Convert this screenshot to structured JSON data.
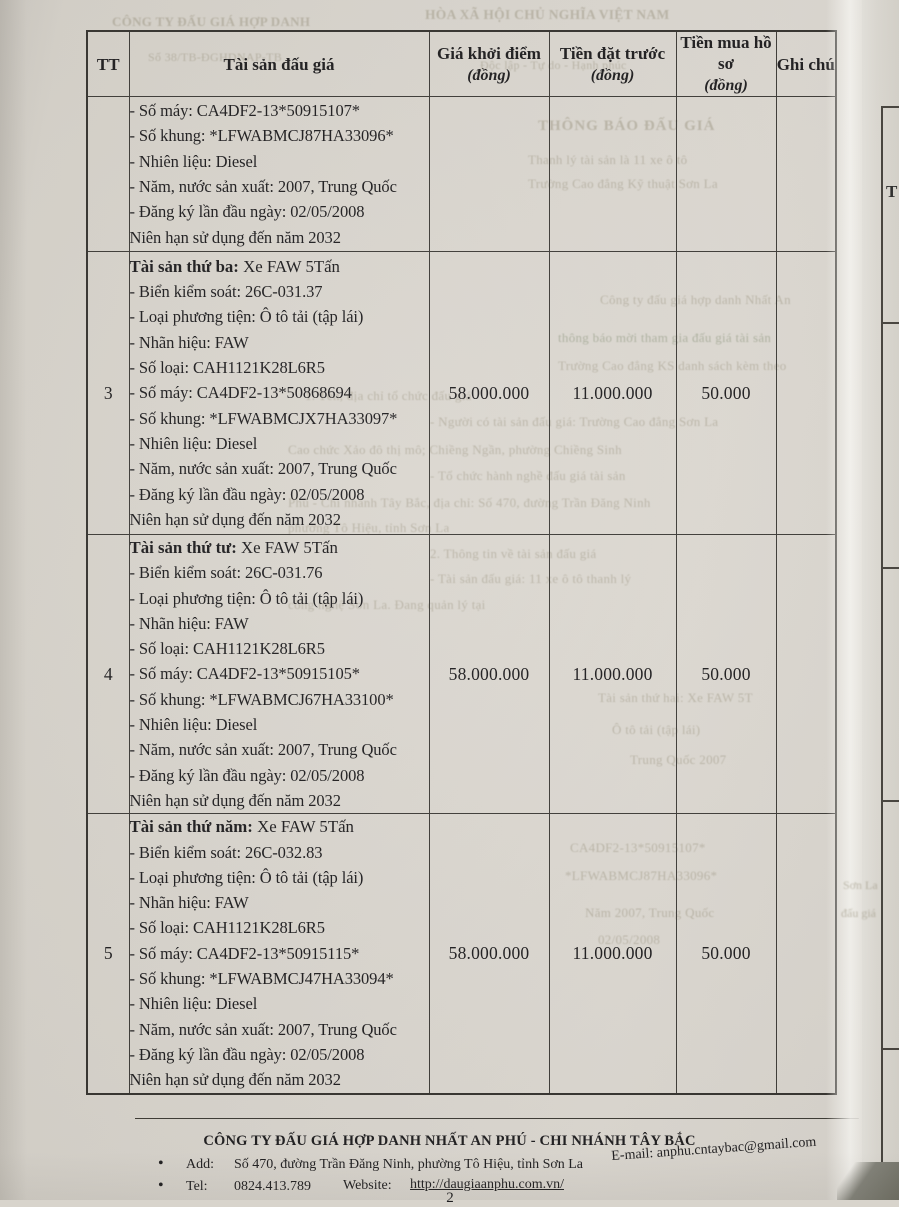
{
  "page": {
    "number": "2"
  },
  "table": {
    "columns": [
      {
        "label": "TT",
        "sub": ""
      },
      {
        "label": "Tài sản đấu giá",
        "sub": ""
      },
      {
        "label": "Giá khởi điểm",
        "sub": "(đồng)"
      },
      {
        "label": "Tiền đặt trước",
        "sub": "(đồng)"
      },
      {
        "label": "Tiền mua hồ sơ",
        "sub": "(đồng)"
      },
      {
        "label": "Ghi chú",
        "sub": ""
      }
    ],
    "rows": [
      {
        "tt": "",
        "title_bold": "",
        "title_rest": "",
        "details": [
          "- Số máy: CA4DF2-13*50915107*",
          "- Số khung: *LFWABMCJ87HA33096*",
          "- Nhiên liệu: Diesel",
          "- Năm, nước sản xuất: 2007, Trung Quốc",
          "- Đăng ký lần đầu ngày: 02/05/2008",
          "Niên hạn sử dụng đến năm 2032"
        ],
        "gia_khoi_diem": "",
        "tien_dat_truoc": "",
        "tien_mua_ho_so": "",
        "ghi_chu": ""
      },
      {
        "tt": "3",
        "title_bold": "Tài sản thứ ba:",
        "title_rest": " Xe FAW 5Tấn",
        "details": [
          "- Biển kiểm soát: 26C-031.37",
          "- Loại phương tiện: Ô tô tải (tập lái)",
          "- Nhãn hiệu: FAW",
          "- Số loại: CAH1121K28L6R5",
          "- Số máy: CA4DF2-13*50868694",
          "- Số khung: *LFWABMCJX7HA33097*",
          "- Nhiên liệu: Diesel",
          "- Năm, nước sản xuất: 2007, Trung Quốc",
          "- Đăng ký lần đầu ngày: 02/05/2008",
          "Niên hạn sử dụng đến năm 2032"
        ],
        "gia_khoi_diem": "58.000.000",
        "tien_dat_truoc": "11.000.000",
        "tien_mua_ho_so": "50.000",
        "ghi_chu": ""
      },
      {
        "tt": "4",
        "title_bold": "Tài sản thứ tư:",
        "title_rest": " Xe FAW 5Tấn",
        "details": [
          "- Biển kiểm soát: 26C-031.76",
          "- Loại phương tiện: Ô tô tải (tập lái)",
          "- Nhãn hiệu: FAW",
          "- Số loại: CAH1121K28L6R5",
          "- Số máy: CA4DF2-13*50915105*",
          "- Số khung: *LFWABMCJ67HA33100*",
          "- Nhiên liệu: Diesel",
          "- Năm, nước sản xuất: 2007, Trung Quốc",
          "- Đăng ký lần đầu ngày: 02/05/2008",
          "Niên hạn sử dụng đến năm 2032"
        ],
        "gia_khoi_diem": "58.000.000",
        "tien_dat_truoc": "11.000.000",
        "tien_mua_ho_so": "50.000",
        "ghi_chu": ""
      },
      {
        "tt": "5",
        "title_bold": "Tài sản thứ năm:",
        "title_rest": " Xe FAW 5Tấn",
        "details": [
          "- Biển kiểm soát: 26C-032.83",
          "- Loại phương tiện: Ô tô tải (tập lái)",
          "- Nhãn hiệu: FAW",
          "- Số loại: CAH1121K28L6R5",
          "- Số máy: CA4DF2-13*50915115*",
          "- Số khung: *LFWABMCJ47HA33094*",
          "- Nhiên liệu: Diesel",
          "- Năm, nước sản xuất: 2007, Trung Quốc",
          "- Đăng ký lần đầu ngày: 02/05/2008",
          "Niên hạn sử dụng đến năm 2032"
        ],
        "gia_khoi_diem": "58.000.000",
        "tien_dat_truoc": "11.000.000",
        "tien_mua_ho_so": "50.000",
        "ghi_chu": ""
      }
    ]
  },
  "footer": {
    "company": "CÔNG TY ĐẤU GIÁ HỢP DANH NHẤT AN PHÚ - CHI NHÁNH TÂY BẮC",
    "bullet": "•",
    "address_label": "Add:",
    "address": "Số 470, đường Trần Đăng Ninh, phường Tô Hiệu, tỉnh Sơn La",
    "tel_label": "Tel:",
    "tel": "0824.413.789",
    "website_label": "Website:",
    "website": "http://daugiaanphu.com.vn/",
    "email_label": "E-mail:",
    "email": "anphu.cntaybac@gmail.com"
  },
  "neighbor_page": {
    "header_fragment": "T"
  },
  "bleed_through": {
    "fragments": [
      "CÔNG TY ĐẤU GIÁ HỢP DANH",
      "HÒA XÃ HỘI CHỦ NGHĨA VIỆT NAM",
      "Số 38/TB-ĐGHDNAP-TB",
      "Độc lập - Tự do - Hạnh phúc",
      "THÔNG BÁO ĐẤU GIÁ",
      "Thanh lý tài sản là 11 xe ô tô",
      "Trường Cao đẳng Kỹ thuật Sơn La",
      "Công ty đấu giá hợp danh Nhất An",
      "thông báo mời tham gia đấu giá tài sản",
      "Trường Cao đẳng KS danh sách kèm theo",
      "1. Tên, địa chỉ tổ chức đấu giá",
      "- Người có tài sản đấu giá: Trường Cao đẳng Sơn La",
      "Cao chức Xảo đô thị mô; Chiềng Ngần, phường Chiềng Sinh",
      "- Tổ chức hành nghề đấu giá tài sản",
      "Phú - Chi nhánh Tây Bắc, địa chỉ: Số 470, đường Trần Đăng Ninh",
      "phường Tô Hiệu, tỉnh Sơn La",
      "2. Thông tin về tài sản đấu giá",
      "- Tài sản đấu giá: 11 xe ô tô thanh lý",
      "công nghệ Sơn La. Đang quản lý tại",
      "Tài sản thứ hai: Xe FAW 5T",
      "Ô tô tải (tập lái)",
      "Trung Quốc 2007",
      "CA4DF2-13*50915107*",
      "*LFWABMCJ87HA33096*",
      "Năm 2007, Trung Quốc",
      "02/05/2008",
      "Sơn La",
      "đấu giá"
    ]
  },
  "colors": {
    "paper": "#d8d4cc",
    "ink": "#1d1c1e",
    "table_border": "#3c3a36",
    "bleed_text": "#8e8770",
    "desk": "#6e6e62"
  }
}
